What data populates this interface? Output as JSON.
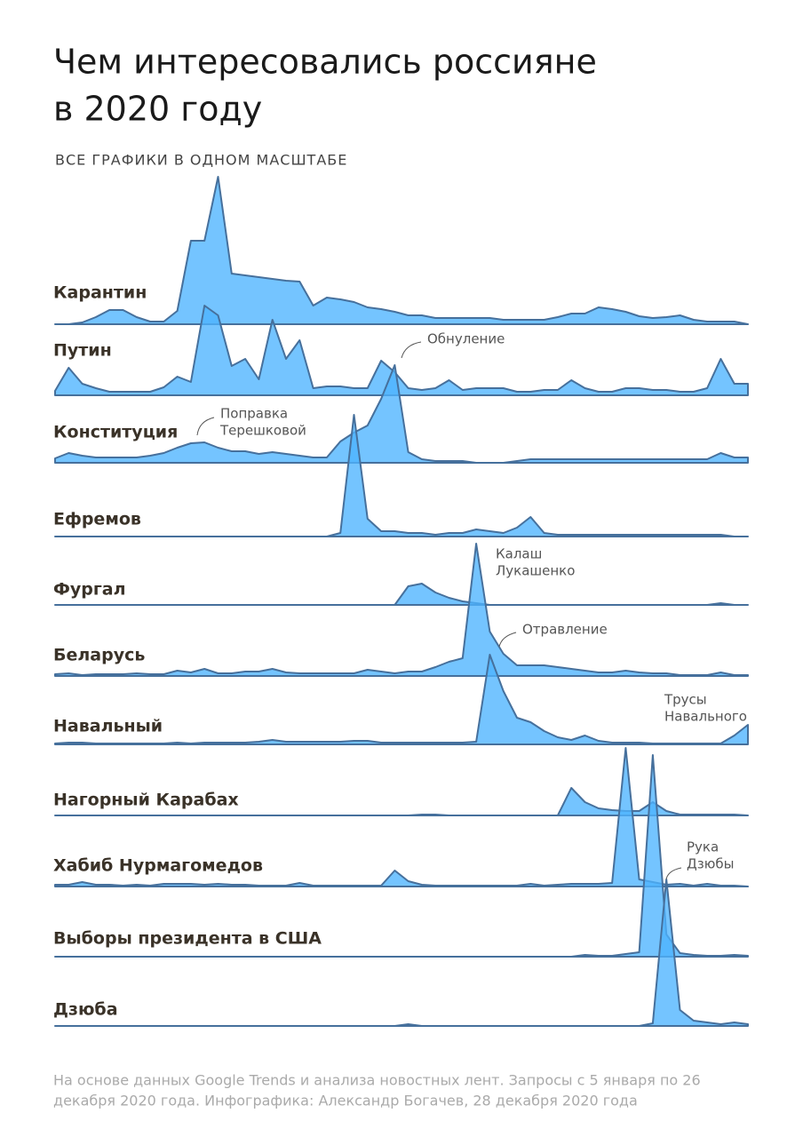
{
  "chart_data": {
    "type": "ridgeline",
    "title": [
      "Чем интересовались россияне",
      "в 2020 году"
    ],
    "subtitle": "ВСЕ ГРАФИКИ В ОДНОМ МАСШТАБЕ",
    "footnote": [
      "На основе данных Google Trends и анализа новостных лент. Запросы с 5 января по 26",
      "декабря 2020 года. Инфографика: Александр Богачев, 28 декабря 2020 года"
    ],
    "fill_color": "#4db3ff",
    "line_color": "#46709c",
    "series": [
      {
        "name": "Карантин",
        "values": [
          0,
          0,
          2,
          8,
          16,
          16,
          8,
          3,
          3,
          15,
          94,
          94,
          166,
          57,
          55,
          53,
          51,
          49,
          48,
          21,
          30,
          28,
          25,
          19,
          17,
          14,
          10,
          10,
          7,
          7,
          7,
          7,
          7,
          5,
          5,
          5,
          5,
          8,
          12,
          12,
          19,
          17,
          14,
          9,
          7,
          8,
          10,
          5,
          3,
          3,
          3,
          0
        ]
      },
      {
        "name": "Путин",
        "values": [
          5,
          31,
          13,
          8,
          4,
          4,
          4,
          4,
          9,
          21,
          15,
          101,
          90,
          33,
          41,
          18,
          85,
          41,
          62,
          8,
          10,
          10,
          8,
          8,
          39,
          26,
          8,
          6,
          8,
          17,
          6,
          8,
          8,
          8,
          4,
          4,
          6,
          6,
          17,
          8,
          4,
          4,
          8,
          8,
          6,
          6,
          4,
          4,
          8,
          41,
          13,
          13
        ]
      },
      {
        "name": "Конституция",
        "values": [
          5,
          11,
          8,
          6,
          6,
          6,
          6,
          8,
          11,
          17,
          22,
          23,
          17,
          13,
          13,
          10,
          12,
          10,
          8,
          6,
          6,
          24,
          34,
          42,
          72,
          110,
          12,
          4,
          2,
          2,
          2,
          0,
          0,
          0,
          2,
          4,
          4,
          4,
          4,
          4,
          4,
          4,
          4,
          4,
          4,
          4,
          4,
          4,
          4,
          11,
          6,
          6
        ]
      },
      {
        "name": "Ефремов",
        "values": [
          0,
          0,
          0,
          0,
          0,
          0,
          0,
          0,
          0,
          0,
          0,
          0,
          0,
          0,
          0,
          0,
          0,
          0,
          0,
          0,
          0,
          4,
          137,
          20,
          6,
          6,
          4,
          4,
          2,
          4,
          4,
          8,
          6,
          4,
          10,
          22,
          4,
          2,
          2,
          2,
          2,
          2,
          2,
          2,
          2,
          2,
          2,
          2,
          2,
          2,
          0,
          0
        ]
      },
      {
        "name": "Фургал",
        "values": [
          0,
          0,
          0,
          0,
          0,
          0,
          0,
          0,
          0,
          0,
          0,
          0,
          0,
          0,
          0,
          0,
          0,
          0,
          0,
          0,
          0,
          0,
          0,
          0,
          0,
          0,
          21,
          24,
          14,
          8,
          4,
          2,
          0,
          0,
          0,
          0,
          0,
          0,
          0,
          0,
          0,
          0,
          0,
          0,
          0,
          0,
          0,
          0,
          0,
          2,
          0,
          0
        ]
      },
      {
        "name": "Беларусь",
        "values": [
          2,
          3,
          1,
          2,
          2,
          2,
          3,
          2,
          2,
          6,
          4,
          8,
          3,
          3,
          5,
          5,
          8,
          4,
          3,
          3,
          3,
          3,
          3,
          7,
          5,
          3,
          5,
          5,
          10,
          16,
          20,
          149,
          50,
          25,
          12,
          12,
          12,
          10,
          8,
          6,
          4,
          4,
          6,
          4,
          3,
          3,
          1,
          1,
          1,
          4,
          1,
          1
        ]
      },
      {
        "name": "Навальный",
        "values": [
          1,
          2,
          2,
          1,
          1,
          1,
          1,
          1,
          1,
          2,
          1,
          2,
          2,
          2,
          2,
          3,
          5,
          3,
          3,
          3,
          3,
          3,
          4,
          4,
          2,
          2,
          2,
          2,
          2,
          2,
          2,
          3,
          101,
          60,
          30,
          25,
          15,
          8,
          5,
          10,
          4,
          2,
          2,
          2,
          1,
          1,
          1,
          1,
          1,
          1,
          10,
          22
        ]
      },
      {
        "name": "Нагорный Карабах",
        "values": [
          0,
          0,
          0,
          0,
          0,
          0,
          0,
          0,
          0,
          0,
          0,
          0,
          0,
          0,
          0,
          0,
          0,
          0,
          0,
          0,
          0,
          0,
          0,
          0,
          0,
          0,
          0,
          1,
          1,
          0,
          0,
          0,
          0,
          0,
          0,
          0,
          0,
          0,
          31,
          15,
          8,
          6,
          5,
          5,
          15,
          5,
          1,
          1,
          1,
          1,
          1,
          0
        ]
      },
      {
        "name": "Хабиб Нурмагомедов",
        "values": [
          2,
          2,
          5,
          2,
          2,
          1,
          2,
          1,
          3,
          3,
          3,
          2,
          3,
          2,
          2,
          1,
          1,
          1,
          4,
          1,
          1,
          1,
          1,
          1,
          1,
          18,
          6,
          2,
          1,
          1,
          1,
          1,
          1,
          1,
          1,
          3,
          1,
          2,
          3,
          3,
          3,
          4,
          156,
          8,
          5,
          2,
          3,
          1,
          3,
          1,
          1,
          0
        ]
      },
      {
        "name": "Выборы президента в США",
        "values": [
          0,
          0,
          0,
          0,
          0,
          0,
          0,
          0,
          0,
          0,
          0,
          0,
          0,
          0,
          0,
          0,
          0,
          0,
          0,
          0,
          0,
          0,
          0,
          0,
          0,
          0,
          0,
          0,
          0,
          0,
          0,
          0,
          0,
          0,
          0,
          0,
          0,
          0,
          0,
          2,
          1,
          1,
          3,
          5,
          227,
          25,
          4,
          2,
          1,
          1,
          2,
          1
        ]
      },
      {
        "name": "Дзюба",
        "values": [
          0,
          0,
          0,
          0,
          0,
          0,
          0,
          0,
          0,
          0,
          0,
          0,
          0,
          0,
          0,
          0,
          0,
          0,
          0,
          0,
          0,
          0,
          0,
          0,
          0,
          0,
          2,
          0,
          0,
          0,
          0,
          0,
          0,
          0,
          0,
          0,
          0,
          0,
          0,
          0,
          0,
          0,
          0,
          0,
          3,
          165,
          18,
          6,
          4,
          2,
          4,
          2
        ]
      }
    ],
    "annotations": [
      {
        "text": [
          "Обнуление"
        ]
      },
      {
        "text": [
          "Поправка",
          "Терешковой"
        ]
      },
      {
        "text": [
          "Калаш",
          "Лукашенко"
        ]
      },
      {
        "text": [
          "Отравление"
        ]
      },
      {
        "text": [
          "Трусы",
          "Навального"
        ]
      },
      {
        "text": [
          "Рука",
          "Дзюбы"
        ]
      }
    ]
  }
}
